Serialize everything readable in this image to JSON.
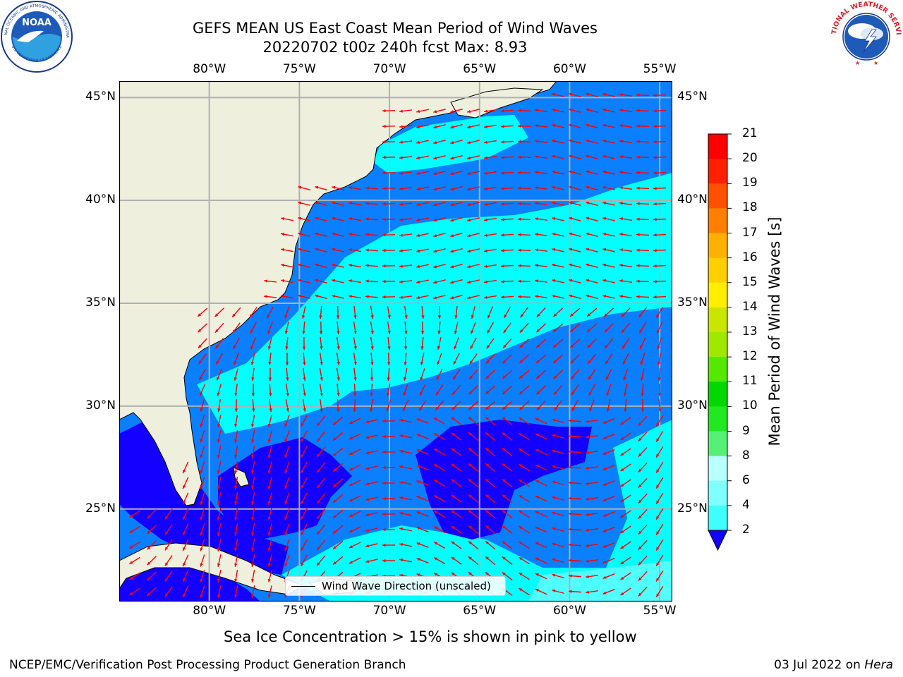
{
  "header": {
    "title_line1": "GEFS MEAN US East Coast Mean Period of Wind Waves",
    "title_line2": "20220702 t00z 240h fcst   Max: 8.93"
  },
  "logos": {
    "left": {
      "name": "NOAA",
      "arc_text": "NATIONAL OCEANIC AND ATMOSPHERIC ADMINISTRATION",
      "bottom_text": "U.S. DEPARTMENT OF COMMERCE"
    },
    "right": {
      "arc_text": "NATIONAL WEATHER SERVICE"
    }
  },
  "map": {
    "lon_labels": [
      "80°W",
      "75°W",
      "70°W",
      "65°W",
      "60°W",
      "55°W"
    ],
    "lat_labels": [
      "45°N",
      "40°N",
      "35°N",
      "30°N",
      "25°N"
    ],
    "lon_values": [
      -80,
      -75,
      -70,
      -65,
      -60,
      -55
    ],
    "lat_values": [
      45,
      40,
      35,
      30,
      25
    ],
    "extent": {
      "lon_min": -85,
      "lon_max": -54.3,
      "lat_min": 20.5,
      "lat_max": 45.8
    },
    "legend_label": "Wind Wave Direction (unscaled)",
    "colors": {
      "land": "#efefde",
      "ocean_2_4": "#0a7fff",
      "ocean_4_6": "#00ffff",
      "ocean_0_2": "#1400ff",
      "ocean_6_8": "#50ffff",
      "arrows": "#ff0000",
      "grid": "#b0b0b0"
    }
  },
  "colorbar": {
    "title": "Mean Period of Wind Waves [s]",
    "levels": [
      "2",
      "4",
      "6",
      "8",
      "9",
      "10",
      "11",
      "12",
      "13",
      "14",
      "15",
      "16",
      "17",
      "18",
      "19",
      "20",
      "21"
    ],
    "colors": [
      "#0f7fff",
      "#00ffff",
      "#40ffff",
      "#80ffff",
      "#b8ffff",
      "#55f075",
      "#22e822",
      "#00d800",
      "#55e800",
      "#a0e800",
      "#c8e600",
      "#ffee00",
      "#ffd000",
      "#ffb000",
      "#ff8000",
      "#ff5000",
      "#ff2000",
      "#ff0000"
    ],
    "under_color": "#1400ff"
  },
  "caption": "Sea Ice Concentration > 15% is shown in pink to yellow",
  "footer": {
    "left": "NCEP/EMC/Verification Post Processing Product Generation Branch",
    "right_date": "03 Jul 2022 on ",
    "right_host": "Hera"
  }
}
